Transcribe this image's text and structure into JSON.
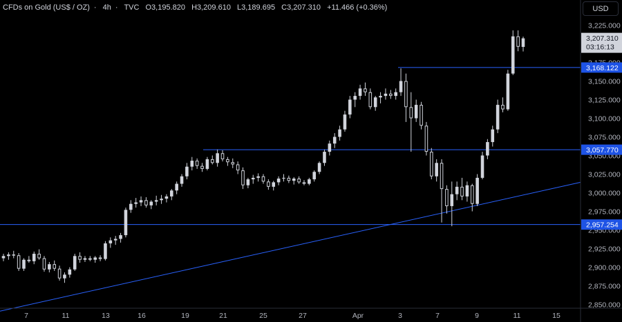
{
  "header": {
    "symbol": "CFDs on Gold (US$ / OZ)",
    "interval": "4h",
    "source": "TVC",
    "open": "O3,195.820",
    "high": "H3,209.610",
    "low": "L3,189.695",
    "close": "C3,207.310",
    "change": "+11.466 (+0.36%)"
  },
  "currency_button": "USD",
  "colors": {
    "background": "#000000",
    "candle": "#d1d4dc",
    "level_line": "#2962ff",
    "label_bg": "#1e53e5"
  },
  "chart_data": {
    "type": "candlestick",
    "ylim": [
      2835,
      3240
    ],
    "y_ticks": [
      2850,
      2875,
      2900,
      2925,
      2950,
      2975,
      3000,
      3025,
      3050,
      3075,
      3100,
      3125,
      3150,
      3175,
      3225
    ],
    "y_tick_labels": [
      "2,850.000",
      "2,875.000",
      "2,900.000",
      "2,925.000",
      "2,950.000",
      "2,975.000",
      "3,000.000",
      "3,025.000",
      "3,050.000",
      "3,075.000",
      "3,100.000",
      "3,125.000",
      "3,150.000",
      "3,175.000",
      "3,225.000"
    ],
    "x_labels": [
      "7",
      "11",
      "13",
      "16",
      "19",
      "21",
      "25",
      "27",
      "Apr",
      "3",
      "7",
      "9",
      "11",
      "15"
    ],
    "last_price": {
      "value": 3207.31,
      "label": "3,207.310",
      "countdown": "03:16:13"
    },
    "levels": [
      {
        "value": 3168.122,
        "label": "3,168.122"
      },
      {
        "value": 3057.77,
        "label": "3,057.770"
      },
      {
        "value": 2957.254,
        "label": "2,957.254"
      }
    ],
    "trendline": {
      "start": 2841,
      "end": 3014
    },
    "candles": [
      [
        2912,
        2918,
        2908,
        2915
      ],
      [
        2915,
        2920,
        2910,
        2917
      ],
      [
        2917,
        2922,
        2912,
        2916
      ],
      [
        2916,
        2919,
        2895,
        2898
      ],
      [
        2898,
        2912,
        2895,
        2910
      ],
      [
        2910,
        2915,
        2906,
        2908
      ],
      [
        2908,
        2921,
        2904,
        2918
      ],
      [
        2918,
        2924,
        2910,
        2912
      ],
      [
        2912,
        2915,
        2894,
        2897
      ],
      [
        2897,
        2907,
        2893,
        2904
      ],
      [
        2904,
        2909,
        2895,
        2898
      ],
      [
        2898,
        2902,
        2882,
        2885
      ],
      [
        2885,
        2893,
        2879,
        2890
      ],
      [
        2890,
        2900,
        2886,
        2897
      ],
      [
        2897,
        2918,
        2895,
        2915
      ],
      [
        2915,
        2920,
        2906,
        2910
      ],
      [
        2910,
        2915,
        2907,
        2912
      ],
      [
        2912,
        2915,
        2908,
        2910
      ],
      [
        2910,
        2915,
        2906,
        2913
      ],
      [
        2913,
        2916,
        2908,
        2911
      ],
      [
        2911,
        2935,
        2909,
        2932
      ],
      [
        2932,
        2940,
        2926,
        2936
      ],
      [
        2936,
        2942,
        2930,
        2938
      ],
      [
        2938,
        2946,
        2933,
        2943
      ],
      [
        2943,
        2980,
        2940,
        2977
      ],
      [
        2977,
        2990,
        2973,
        2985
      ],
      [
        2985,
        2993,
        2980,
        2987
      ],
      [
        2987,
        2995,
        2982,
        2990
      ],
      [
        2990,
        2994,
        2980,
        2983
      ],
      [
        2983,
        2990,
        2978,
        2988
      ],
      [
        2988,
        2996,
        2983,
        2990
      ],
      [
        2990,
        2997,
        2985,
        2992
      ],
      [
        2992,
        2998,
        2987,
        2995
      ],
      [
        2995,
        3005,
        2990,
        3003
      ],
      [
        3003,
        3015,
        2998,
        3012
      ],
      [
        3012,
        3025,
        3008,
        3022
      ],
      [
        3022,
        3040,
        3018,
        3035
      ],
      [
        3035,
        3048,
        3030,
        3043
      ],
      [
        3043,
        3046,
        3032,
        3036
      ],
      [
        3036,
        3040,
        3028,
        3032
      ],
      [
        3032,
        3048,
        3030,
        3045
      ],
      [
        3045,
        3050,
        3038,
        3040
      ],
      [
        3040,
        3058,
        3035,
        3053
      ],
      [
        3053,
        3057,
        3042,
        3045
      ],
      [
        3045,
        3048,
        3036,
        3041
      ],
      [
        3041,
        3046,
        3033,
        3038
      ],
      [
        3038,
        3042,
        3025,
        3030
      ],
      [
        3030,
        3034,
        3005,
        3010
      ],
      [
        3010,
        3020,
        3006,
        3018
      ],
      [
        3018,
        3024,
        3012,
        3020
      ],
      [
        3020,
        3026,
        3015,
        3022
      ],
      [
        3022,
        3025,
        3012,
        3015
      ],
      [
        3015,
        3018,
        3004,
        3008
      ],
      [
        3008,
        3016,
        3003,
        3014
      ],
      [
        3014,
        3022,
        3010,
        3019
      ],
      [
        3019,
        3025,
        3015,
        3020
      ],
      [
        3020,
        3023,
        3013,
        3016
      ],
      [
        3016,
        3021,
        3011,
        3019
      ],
      [
        3019,
        3022,
        3012,
        3014
      ],
      [
        3014,
        3017,
        3010,
        3012
      ],
      [
        3012,
        3020,
        3010,
        3018
      ],
      [
        3018,
        3030,
        3015,
        3028
      ],
      [
        3028,
        3042,
        3025,
        3040
      ],
      [
        3040,
        3058,
        3036,
        3055
      ],
      [
        3055,
        3070,
        3050,
        3066
      ],
      [
        3066,
        3080,
        3060,
        3075
      ],
      [
        3075,
        3090,
        3070,
        3085
      ],
      [
        3085,
        3110,
        3082,
        3105
      ],
      [
        3105,
        3130,
        3100,
        3125
      ],
      [
        3125,
        3135,
        3115,
        3130
      ],
      [
        3130,
        3145,
        3125,
        3140
      ],
      [
        3140,
        3148,
        3130,
        3135
      ],
      [
        3135,
        3140,
        3112,
        3115
      ],
      [
        3115,
        3130,
        3110,
        3128
      ],
      [
        3128,
        3135,
        3120,
        3130
      ],
      [
        3130,
        3140,
        3125,
        3133
      ],
      [
        3133,
        3138,
        3126,
        3130
      ],
      [
        3130,
        3140,
        3125,
        3135
      ],
      [
        3135,
        3167,
        3130,
        3150
      ],
      [
        3150,
        3160,
        3095,
        3115
      ],
      [
        3115,
        3135,
        3055,
        3100
      ],
      [
        3100,
        3125,
        3095,
        3118
      ],
      [
        3118,
        3122,
        3085,
        3090
      ],
      [
        3090,
        3095,
        3050,
        3055
      ],
      [
        3055,
        3060,
        3018,
        3022
      ],
      [
        3022,
        3045,
        3015,
        3040
      ],
      [
        3040,
        3045,
        2960,
        3005
      ],
      [
        3005,
        3010,
        2972,
        2982
      ],
      [
        2982,
        3015,
        2955,
        2998
      ],
      [
        2998,
        3015,
        2990,
        3008
      ],
      [
        3008,
        3020,
        2990,
        2995
      ],
      [
        2995,
        3015,
        2988,
        3010
      ],
      [
        3010,
        3012,
        2975,
        2985
      ],
      [
        2985,
        3025,
        2982,
        3020
      ],
      [
        3020,
        3055,
        3018,
        3050
      ],
      [
        3050,
        3072,
        3045,
        3068
      ],
      [
        3068,
        3090,
        3062,
        3085
      ],
      [
        3085,
        3125,
        3080,
        3118
      ],
      [
        3118,
        3128,
        3108,
        3112
      ],
      [
        3112,
        3165,
        3110,
        3160
      ],
      [
        3160,
        3218,
        3158,
        3210
      ],
      [
        3210,
        3218,
        3190,
        3196
      ],
      [
        3195.82,
        3209.61,
        3189.695,
        3207.31
      ]
    ]
  }
}
